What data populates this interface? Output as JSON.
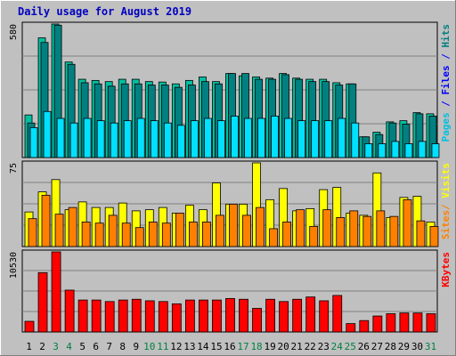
{
  "chart_data": {
    "type": "bar",
    "title": "Daily usage for August 2019",
    "categories": [
      "1",
      "2",
      "3",
      "4",
      "5",
      "6",
      "7",
      "8",
      "9",
      "10",
      "11",
      "12",
      "13",
      "14",
      "15",
      "16",
      "17",
      "18",
      "19",
      "20",
      "21",
      "22",
      "23",
      "24",
      "25",
      "26",
      "27",
      "28",
      "29",
      "30",
      "31"
    ],
    "weekend_days": [
      "3",
      "4",
      "10",
      "11",
      "17",
      "18",
      "24",
      "25",
      "31"
    ],
    "panels": [
      {
        "id": "hits",
        "max_label": "580",
        "ymax": 580,
        "series": [
          {
            "name": "Hits",
            "color": "#00c0a0",
            "values": [
              185,
              520,
              580,
              415,
              340,
              335,
              330,
              340,
              340,
              330,
              328,
              320,
              335,
              350,
              330,
              365,
              355,
              350,
              345,
              365,
              345,
              340,
              340,
              325,
              320,
              90,
              110,
              155,
              160,
              195,
              190
            ]
          },
          {
            "name": "Files",
            "color": "#008080",
            "values": [
              150,
              500,
              575,
              405,
              325,
              320,
              310,
              320,
              320,
              315,
              315,
              305,
              315,
              330,
              320,
              365,
              365,
              340,
              340,
              360,
              340,
              330,
              330,
              315,
              320,
              90,
              100,
              150,
              145,
              190,
              180
            ]
          },
          {
            "name": "Pages",
            "color": "#00e0ff",
            "values": [
              130,
              200,
              170,
              150,
              170,
              160,
              150,
              160,
              170,
              160,
              150,
              140,
              160,
              170,
              160,
              180,
              170,
              170,
              180,
              170,
              160,
              160,
              160,
              170,
              150,
              60,
              60,
              70,
              60,
              70,
              60
            ]
          }
        ],
        "legend": [
          "Pages",
          "Files",
          "Hits"
        ],
        "legend_colors": [
          "#00c0e0",
          "#0000ff",
          "#008080"
        ]
      },
      {
        "id": "visits",
        "max_label": "75",
        "ymax": 75,
        "series": [
          {
            "name": "Visits",
            "color": "#ffff00",
            "values": [
              31,
              49,
              60,
              33,
              40,
              35,
              35,
              39,
              32,
              33,
              35,
              30,
              37,
              33,
              57,
              38,
              38,
              75,
              42,
              52,
              32,
              34,
              51,
              53,
              30,
              28,
              66,
              26,
              44,
              45,
              22
            ]
          },
          {
            "name": "Sites",
            "color": "#ff8000",
            "values": [
              25,
              46,
              29,
              35,
              22,
              21,
              28,
              21,
              17,
              22,
              21,
              30,
              22,
              22,
              28,
              38,
              28,
              35,
              16,
              22,
              33,
              18,
              33,
              26,
              32,
              27,
              32,
              27,
              42,
              23,
              18
            ]
          }
        ],
        "legend": [
          "Sites",
          "/",
          "Visits"
        ],
        "legend_colors": [
          "#ff8000",
          "#ff8000",
          "#ffff00"
        ]
      },
      {
        "id": "kbytes",
        "max_label": "10530",
        "ymax": 10530,
        "series": [
          {
            "name": "KBytes",
            "color": "#ff0000",
            "values": [
              1400,
              7800,
              10530,
              5500,
              4200,
              4200,
              4000,
              4200,
              4300,
              4100,
              4000,
              3700,
              4200,
              4200,
              4200,
              4400,
              4300,
              3100,
              4300,
              4000,
              4300,
              4600,
              4100,
              4800,
              1100,
              1500,
              2100,
              2400,
              2500,
              2500,
              2400
            ]
          }
        ],
        "legend": [
          "KBytes"
        ],
        "legend_colors": [
          "#ff0000"
        ]
      }
    ],
    "grid": true,
    "legend_placement": "right"
  }
}
